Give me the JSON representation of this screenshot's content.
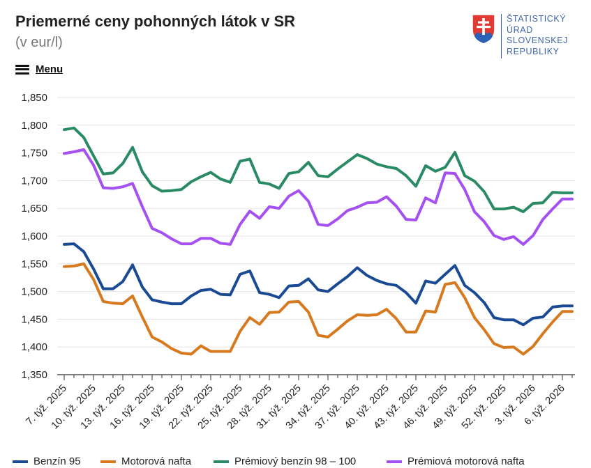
{
  "header": {
    "title": "Priemerné ceny pohonných látok v SR",
    "subtitle": "(v eur/l)",
    "menu_label": "Menu"
  },
  "logo": {
    "lines": [
      "ŠTATISTICKÝ",
      "ÚRAD",
      "SLOVENSKEJ",
      "REPUBLIKY"
    ],
    "color": "#3f66a8"
  },
  "colors": {
    "benzin95": "#1a4a94",
    "nafta": "#d6791f",
    "premium_benzin": "#2a8a64",
    "premium_nafta": "#a550f0"
  },
  "chart_data": {
    "type": "line",
    "title": "Priemerné ceny pohonných látok v SR",
    "ylabel": "eur/l",
    "ylim": [
      1.35,
      1.85
    ],
    "yticks": [
      "1,350",
      "1,400",
      "1,450",
      "1,500",
      "1,550",
      "1,600",
      "1,650",
      "1,700",
      "1,750",
      "1,800",
      "1,850"
    ],
    "x_tick_labels": [
      "7. týž. 2025",
      "10. týž. 2025",
      "13. týž. 2025",
      "16. týž. 2025",
      "19. týž. 2025",
      "22. týž. 2025",
      "25. týž. 2025",
      "28. týž. 2025",
      "31. týž. 2025",
      "34. týž. 2025",
      "37. týž. 2025",
      "40. týž. 2025",
      "43. týž. 2025",
      "46. týž. 2025",
      "49. týž. 2025",
      "52. týž. 2025",
      "3. týž. 2026",
      "6. týž. 2026"
    ],
    "x_tick_every": 3,
    "n_points": 53,
    "series": [
      {
        "name": "Benzín 95",
        "color": "#1a4a94",
        "values": [
          1.585,
          1.586,
          1.572,
          1.541,
          1.505,
          1.505,
          1.518,
          1.548,
          1.508,
          1.485,
          1.481,
          1.478,
          1.478,
          1.492,
          1.502,
          1.504,
          1.495,
          1.494,
          1.531,
          1.537,
          1.498,
          1.495,
          1.489,
          1.51,
          1.511,
          1.523,
          1.503,
          1.5,
          1.514,
          1.527,
          1.543,
          1.529,
          1.52,
          1.514,
          1.511,
          1.498,
          1.479,
          1.519,
          1.515,
          1.531,
          1.547,
          1.511,
          1.498,
          1.48,
          1.453,
          1.449,
          1.449,
          1.44,
          1.452,
          1.454,
          1.472,
          1.474,
          1.474
        ]
      },
      {
        "name": "Motorová nafta",
        "color": "#d6791f",
        "values": [
          1.545,
          1.546,
          1.55,
          1.522,
          1.482,
          1.479,
          1.478,
          1.492,
          1.454,
          1.418,
          1.409,
          1.397,
          1.389,
          1.387,
          1.402,
          1.392,
          1.392,
          1.392,
          1.428,
          1.453,
          1.441,
          1.462,
          1.463,
          1.481,
          1.482,
          1.463,
          1.421,
          1.418,
          1.432,
          1.447,
          1.458,
          1.457,
          1.458,
          1.468,
          1.451,
          1.427,
          1.427,
          1.465,
          1.463,
          1.513,
          1.516,
          1.489,
          1.453,
          1.431,
          1.406,
          1.399,
          1.4,
          1.387,
          1.401,
          1.424,
          1.445,
          1.464,
          1.464
        ]
      },
      {
        "name": "Prémiový benzín 98 – 100",
        "color": "#2a8a64",
        "values": [
          1.792,
          1.795,
          1.778,
          1.745,
          1.712,
          1.714,
          1.731,
          1.76,
          1.716,
          1.691,
          1.681,
          1.682,
          1.684,
          1.698,
          1.707,
          1.715,
          1.703,
          1.697,
          1.735,
          1.739,
          1.697,
          1.694,
          1.686,
          1.713,
          1.716,
          1.733,
          1.709,
          1.707,
          1.721,
          1.734,
          1.747,
          1.74,
          1.73,
          1.725,
          1.722,
          1.709,
          1.69,
          1.727,
          1.717,
          1.724,
          1.751,
          1.709,
          1.699,
          1.68,
          1.649,
          1.649,
          1.652,
          1.644,
          1.659,
          1.66,
          1.679,
          1.678,
          1.678
        ]
      },
      {
        "name": "Prémiová motorová nafta",
        "color": "#a550f0",
        "values": [
          1.749,
          1.752,
          1.756,
          1.728,
          1.687,
          1.686,
          1.689,
          1.695,
          1.653,
          1.614,
          1.606,
          1.595,
          1.586,
          1.586,
          1.596,
          1.596,
          1.587,
          1.585,
          1.621,
          1.645,
          1.632,
          1.653,
          1.65,
          1.672,
          1.682,
          1.663,
          1.621,
          1.619,
          1.631,
          1.646,
          1.652,
          1.66,
          1.661,
          1.671,
          1.654,
          1.63,
          1.629,
          1.669,
          1.66,
          1.714,
          1.713,
          1.684,
          1.644,
          1.626,
          1.601,
          1.594,
          1.599,
          1.585,
          1.601,
          1.63,
          1.649,
          1.667,
          1.667
        ]
      }
    ],
    "legend_position": "bottom"
  }
}
